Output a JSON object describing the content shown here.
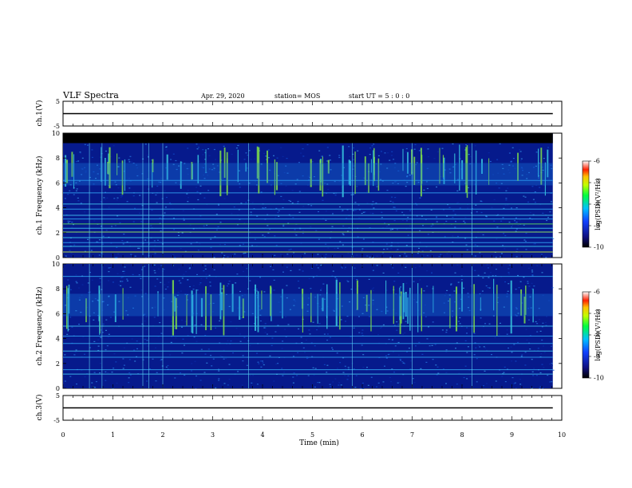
{
  "header": {
    "title": "VLF Spectra",
    "date": "Apr. 29, 2020",
    "station": "station= MOS",
    "start": "start  UT =   5 : 0  : 0"
  },
  "colors": {
    "spectrogram_background": "#061a8c",
    "saturated_band": "#000000",
    "emission_green": "#7fe04a",
    "emission_cyan": "#38c8e0",
    "trace": "#000000"
  },
  "chart_data": [
    {
      "type": "line",
      "panel": "ch1-waveform",
      "ylabel": "ch.1(V)",
      "ylim": [
        -5,
        5
      ],
      "yticks": [
        "5",
        "-5"
      ],
      "xlim": [
        0,
        10
      ],
      "series": [
        {
          "x": [
            0,
            9.82
          ],
          "y": [
            0,
            0
          ]
        }
      ]
    },
    {
      "type": "heatmap",
      "panel": "ch1-spectrogram",
      "ylabel": "ch.1 Frequency (kHz)",
      "ylim": [
        0,
        10
      ],
      "yticks": [
        "0",
        "2",
        "4",
        "6",
        "8",
        "10"
      ],
      "xlim": [
        0,
        10
      ],
      "data_extent_min": [
        0,
        9.82
      ],
      "colorbar": {
        "label": "log(PSD)(V²/Hz)",
        "range": [
          -10,
          -6
        ],
        "ticks": [
          "-6",
          "-7",
          "-8",
          "-9",
          "-10"
        ]
      }
    },
    {
      "type": "heatmap",
      "panel": "ch2-spectrogram",
      "ylabel": "ch.2 Frequency (kHz)",
      "ylim": [
        0,
        10
      ],
      "yticks": [
        "0",
        "2",
        "4",
        "6",
        "8",
        "10"
      ],
      "xlim": [
        0,
        10
      ],
      "data_extent_min": [
        0,
        9.82
      ],
      "colorbar": {
        "label": "log(PSD)(V²/Hz)",
        "range": [
          -10,
          -6
        ],
        "ticks": [
          "-6",
          "-7",
          "-8",
          "-9",
          "-10"
        ]
      }
    },
    {
      "type": "line",
      "panel": "ch3-waveform",
      "ylabel": "ch.3(V)",
      "ylim": [
        -5,
        5
      ],
      "yticks": [
        "5",
        "-5"
      ],
      "xlim": [
        0,
        10
      ],
      "xlabel": "Time  (min)",
      "xticks": [
        "0",
        "1",
        "2",
        "3",
        "4",
        "5",
        "6",
        "7",
        "8",
        "9",
        "10"
      ],
      "series": [
        {
          "x": [
            0,
            9.82
          ],
          "y": [
            0,
            0
          ]
        }
      ]
    }
  ]
}
